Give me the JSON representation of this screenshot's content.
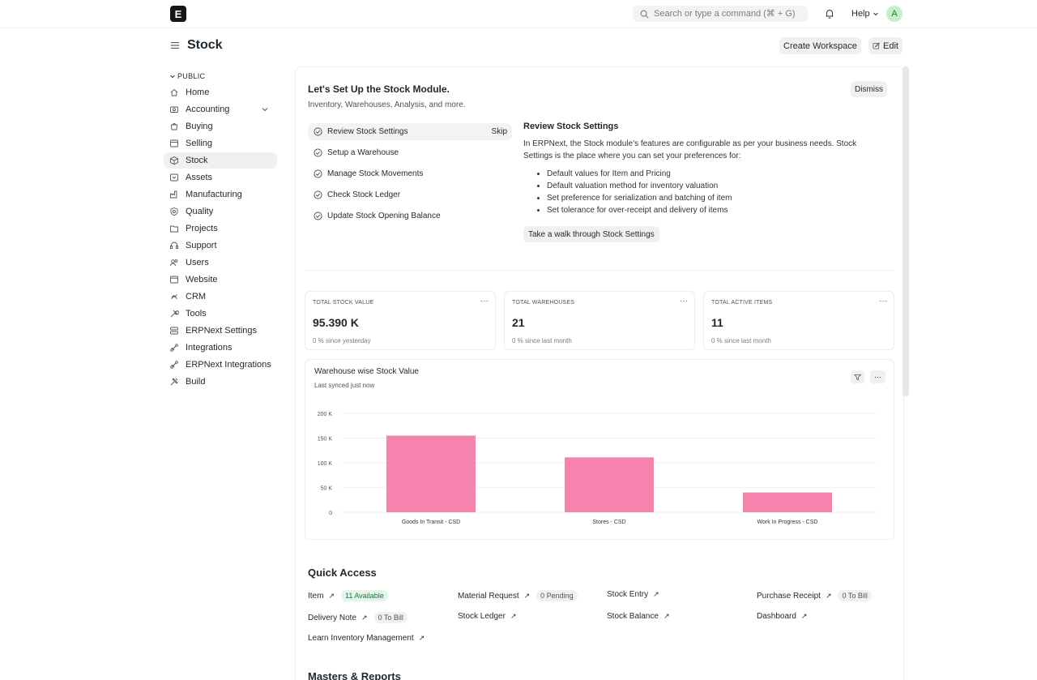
{
  "navbar": {
    "logo_letter": "E",
    "search_placeholder": "Search or type a command (⌘ + G)",
    "help_label": "Help",
    "avatar_letter": "A"
  },
  "page": {
    "title": "Stock",
    "create_workspace_label": "Create Workspace",
    "edit_label": "Edit"
  },
  "sidebar": {
    "section_label": "PUBLIC",
    "items": [
      {
        "label": "Home",
        "icon": "home-icon"
      },
      {
        "label": "Accounting",
        "icon": "accounting-icon"
      },
      {
        "label": "Buying",
        "icon": "buying-icon"
      },
      {
        "label": "Selling",
        "icon": "selling-icon"
      },
      {
        "label": "Stock",
        "icon": "stock-icon"
      },
      {
        "label": "Assets",
        "icon": "assets-icon"
      },
      {
        "label": "Manufacturing",
        "icon": "manufacturing-icon"
      },
      {
        "label": "Quality",
        "icon": "quality-icon"
      },
      {
        "label": "Projects",
        "icon": "projects-icon"
      },
      {
        "label": "Support",
        "icon": "support-icon"
      },
      {
        "label": "Users",
        "icon": "users-icon"
      },
      {
        "label": "Website",
        "icon": "website-icon"
      },
      {
        "label": "CRM",
        "icon": "crm-icon"
      },
      {
        "label": "Tools",
        "icon": "tools-icon"
      },
      {
        "label": "ERPNext Settings",
        "icon": "settings-icon"
      },
      {
        "label": "Integrations",
        "icon": "integrations-icon"
      },
      {
        "label": "ERPNext Integrations",
        "icon": "integrations-icon"
      },
      {
        "label": "Build",
        "icon": "build-icon"
      }
    ]
  },
  "onboarding": {
    "title": "Let's Set Up the Stock Module.",
    "subtitle": "Inventory, Warehouses, Analysis, and more.",
    "dismiss_label": "Dismiss",
    "steps": [
      {
        "label": "Review Stock Settings"
      },
      {
        "label": "Setup a Warehouse"
      },
      {
        "label": "Manage Stock Movements"
      },
      {
        "label": "Check Stock Ledger"
      },
      {
        "label": "Update Stock Opening Balance"
      }
    ],
    "skip_label": "Skip",
    "detail": {
      "title": "Review Stock Settings",
      "text": "In ERPNext, the Stock module’s features are configurable as per your business needs. Stock Settings is the place where you can set your preferences for:",
      "bullets": [
        "Default values for Item and Pricing",
        "Default valuation method for inventory valuation",
        "Set preference for serialization and batching of item",
        "Set tolerance for over-receipt and delivery of items"
      ],
      "action_label": "Take a walk through Stock Settings"
    }
  },
  "number_cards": [
    {
      "label": "TOTAL STOCK VALUE",
      "value": "95.390 K",
      "sub": "0 % since yesterday"
    },
    {
      "label": "TOTAL WAREHOUSES",
      "value": "21",
      "sub": "0 % since last month"
    },
    {
      "label": "TOTAL ACTIVE ITEMS",
      "value": "11",
      "sub": "0 % since last month"
    }
  ],
  "chart_card": {
    "title": "Warehouse wise Stock Value",
    "subtitle": "Last synced just now",
    "more_label": "···"
  },
  "chart_data": {
    "type": "bar",
    "title": "Warehouse wise Stock Value",
    "categories": [
      "Goods In Transit - CSD",
      "Stores - CSD",
      "Work In Progress - CSD"
    ],
    "values": [
      155000,
      111000,
      40000
    ],
    "y_ticks": [
      "0",
      "50 K",
      "100 K",
      "150 K",
      "200 K"
    ],
    "ylim": [
      0,
      200000
    ],
    "grid": true,
    "bar_color": "#f683ae"
  },
  "quick_access": {
    "title": "Quick Access",
    "items": [
      {
        "label": "Item",
        "badge": "11 Available",
        "badge_style": "green"
      },
      {
        "label": "Material Request",
        "badge": "0 Pending",
        "badge_style": "gray"
      },
      {
        "label": "Stock Entry",
        "badge": "",
        "badge_style": ""
      },
      {
        "label": "Purchase Receipt",
        "badge": "0 To Bill",
        "badge_style": "gray"
      },
      {
        "label": "Delivery Note",
        "badge": "0 To Bill",
        "badge_style": "gray"
      },
      {
        "label": "Stock Ledger",
        "badge": "",
        "badge_style": ""
      },
      {
        "label": "Stock Balance",
        "badge": "",
        "badge_style": ""
      },
      {
        "label": "Dashboard",
        "badge": "",
        "badge_style": ""
      },
      {
        "label": "Learn Inventory Management",
        "badge": "",
        "badge_style": ""
      }
    ]
  },
  "masters_title": "Masters & Reports"
}
